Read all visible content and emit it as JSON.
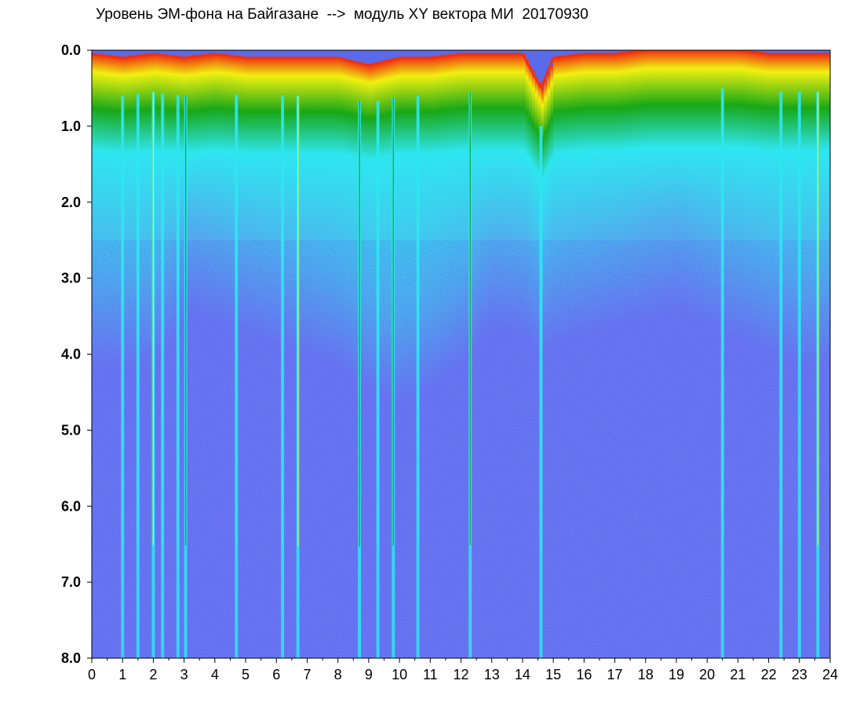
{
  "chart_data": {
    "type": "heatmap",
    "title": "Уровень ЭМ-фона на Байгазане  -->  модуль XY вектора МИ  20170930",
    "xlabel": "",
    "ylabel": "",
    "x_ticks": [
      "0",
      "1",
      "2",
      "3",
      "4",
      "5",
      "6",
      "7",
      "8",
      "9",
      "10",
      "11",
      "12",
      "13",
      "14",
      "15",
      "16",
      "17",
      "18",
      "19",
      "20",
      "21",
      "22",
      "23",
      "24"
    ],
    "y_ticks": [
      "0.0",
      "1.0",
      "2.0",
      "3.0",
      "4.0",
      "5.0",
      "6.0",
      "7.0",
      "8.0"
    ],
    "xlim": [
      0,
      24
    ],
    "ylim": [
      0,
      8
    ],
    "y_axis_inverted": true,
    "grid": false,
    "colormap": [
      "#1010e0",
      "#6a78f0",
      "#2ee6f0",
      "#18a818",
      "#f0f010",
      "#f03010"
    ],
    "colormap_levels": [
      "blue",
      "light-blue",
      "cyan",
      "green",
      "yellow",
      "red"
    ],
    "surface_edge_depth": [
      {
        "x": 0.0,
        "y": 0.05
      },
      {
        "x": 1.0,
        "y": 0.1
      },
      {
        "x": 2.0,
        "y": 0.05
      },
      {
        "x": 3.0,
        "y": 0.1
      },
      {
        "x": 4.0,
        "y": 0.05
      },
      {
        "x": 5.0,
        "y": 0.1
      },
      {
        "x": 6.0,
        "y": 0.1
      },
      {
        "x": 7.0,
        "y": 0.1
      },
      {
        "x": 8.0,
        "y": 0.1
      },
      {
        "x": 9.0,
        "y": 0.2
      },
      {
        "x": 10.0,
        "y": 0.1
      },
      {
        "x": 11.0,
        "y": 0.1
      },
      {
        "x": 12.0,
        "y": 0.05
      },
      {
        "x": 13.0,
        "y": 0.05
      },
      {
        "x": 14.0,
        "y": 0.05
      },
      {
        "x": 14.6,
        "y": 0.5
      },
      {
        "x": 15.0,
        "y": 0.1
      },
      {
        "x": 16.0,
        "y": 0.05
      },
      {
        "x": 17.0,
        "y": 0.05
      },
      {
        "x": 18.0,
        "y": 0.0
      },
      {
        "x": 19.0,
        "y": 0.0
      },
      {
        "x": 20.0,
        "y": 0.0
      },
      {
        "x": 21.0,
        "y": 0.0
      },
      {
        "x": 22.0,
        "y": 0.05
      },
      {
        "x": 23.0,
        "y": 0.05
      },
      {
        "x": 24.0,
        "y": 0.05
      }
    ],
    "cyan_layer_depth": [
      {
        "x": 0.0,
        "y": 2.5
      },
      {
        "x": 2.0,
        "y": 2.5
      },
      {
        "x": 3.2,
        "y": 1.8
      },
      {
        "x": 4.5,
        "y": 2.0
      },
      {
        "x": 6.0,
        "y": 2.2
      },
      {
        "x": 8.0,
        "y": 2.5
      },
      {
        "x": 9.0,
        "y": 2.8
      },
      {
        "x": 10.0,
        "y": 3.0
      },
      {
        "x": 11.0,
        "y": 2.8
      },
      {
        "x": 12.0,
        "y": 2.5
      },
      {
        "x": 13.0,
        "y": 2.0
      },
      {
        "x": 15.0,
        "y": 2.2
      },
      {
        "x": 17.0,
        "y": 2.0
      },
      {
        "x": 19.0,
        "y": 1.8
      },
      {
        "x": 21.0,
        "y": 2.2
      },
      {
        "x": 23.0,
        "y": 2.5
      },
      {
        "x": 24.0,
        "y": 2.5
      }
    ],
    "vertical_streaks": [
      {
        "x": 1.0,
        "level": "cyan"
      },
      {
        "x": 1.5,
        "level": "cyan"
      },
      {
        "x": 2.0,
        "level": "yellow"
      },
      {
        "x": 2.3,
        "level": "cyan"
      },
      {
        "x": 2.8,
        "level": "cyan"
      },
      {
        "x": 3.05,
        "level": "green"
      },
      {
        "x": 4.7,
        "level": "cyan"
      },
      {
        "x": 6.2,
        "level": "cyan"
      },
      {
        "x": 6.7,
        "level": "yellow"
      },
      {
        "x": 8.7,
        "level": "green"
      },
      {
        "x": 9.3,
        "level": "cyan"
      },
      {
        "x": 9.8,
        "level": "green"
      },
      {
        "x": 10.6,
        "level": "cyan"
      },
      {
        "x": 12.3,
        "level": "green"
      },
      {
        "x": 14.6,
        "level": "cyan"
      },
      {
        "x": 20.5,
        "level": "cyan"
      },
      {
        "x": 22.4,
        "level": "cyan"
      },
      {
        "x": 23.0,
        "level": "cyan"
      },
      {
        "x": 23.6,
        "level": "yellow"
      }
    ]
  }
}
